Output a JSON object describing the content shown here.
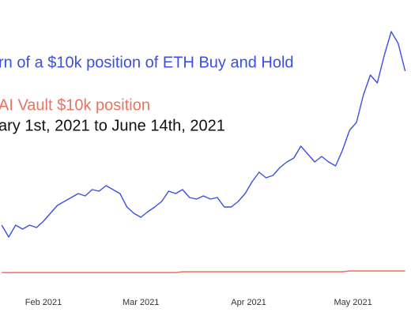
{
  "chart_data": {
    "type": "line",
    "subtitle": "ary 1st, 2021 to June 14th, 2021",
    "series": [
      {
        "name": "rn of a $10k position of ETH Buy and Hold",
        "color": "#3b4fe0",
        "values": [
          115,
          100,
          115,
          110,
          115,
          112,
          120,
          130,
          140,
          145,
          150,
          155,
          152,
          160,
          158,
          165,
          160,
          155,
          138,
          130,
          125,
          132,
          138,
          145,
          158,
          155,
          160,
          150,
          148,
          152,
          148,
          150,
          138,
          138,
          145,
          155,
          170,
          182,
          175,
          178,
          188,
          195,
          200,
          215,
          205,
          195,
          202,
          195,
          190,
          210,
          235,
          245,
          280,
          305,
          295,
          330,
          360,
          345,
          310
        ]
      },
      {
        "name": "AI Vault $10k position",
        "color": "#e8735f",
        "values": [
          55,
          55,
          55,
          55,
          55,
          55,
          55,
          55,
          55,
          55,
          55,
          55,
          55,
          55,
          55,
          55,
          55,
          55,
          55,
          55,
          55,
          55,
          55,
          55,
          55,
          55,
          56,
          56,
          56,
          56,
          56,
          56,
          56,
          56,
          56,
          56,
          56,
          56,
          56,
          56,
          56,
          56,
          56,
          56,
          56,
          56,
          56,
          56,
          56,
          56,
          57,
          57,
          57,
          57,
          57,
          57,
          57,
          57,
          57
        ]
      }
    ],
    "xticks": [
      {
        "value": 6,
        "label": "Feb 2021"
      },
      {
        "value": 20,
        "label": "Mar 2021"
      },
      {
        "value": 35.5,
        "label": "Apr 2021"
      },
      {
        "value": 50.5,
        "label": "May 2021"
      }
    ],
    "ylim": [
      0,
      400
    ]
  }
}
